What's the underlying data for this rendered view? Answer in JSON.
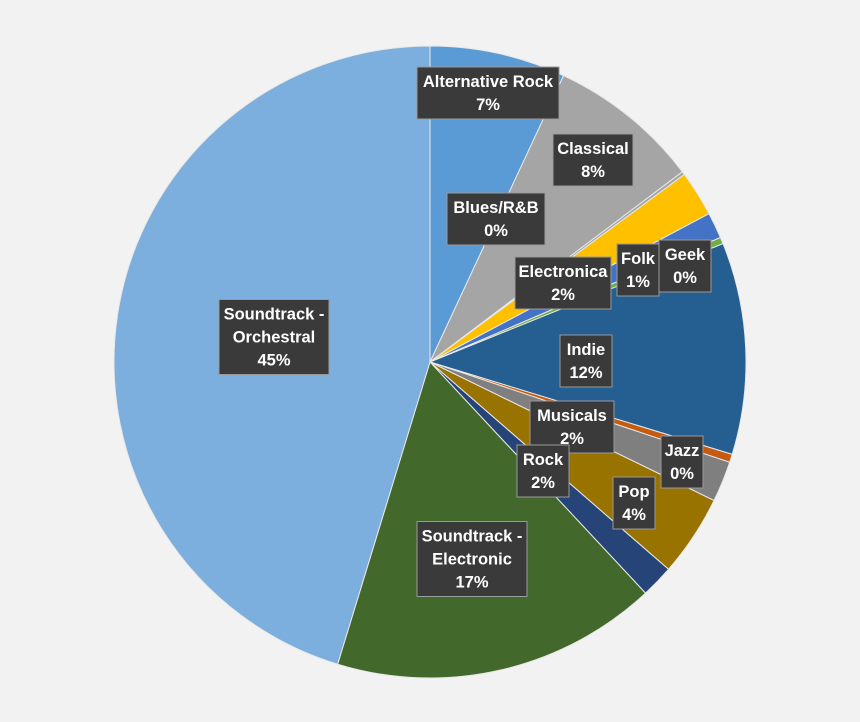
{
  "chart_data": {
    "type": "pie",
    "title": "",
    "start_angle_deg": 0,
    "direction": "clockwise",
    "slices": [
      {
        "label": "Alternative Rock",
        "value": 7,
        "display": "7%",
        "color": "#5b9bd5"
      },
      {
        "label": "Classical",
        "value": 8,
        "display": "8%",
        "color": "#a5a5a5"
      },
      {
        "label": "Blues/R&B",
        "value": 0,
        "display": "0%",
        "color": "#a5a5a5"
      },
      {
        "label": "Electronica",
        "value": 2,
        "display": "2%",
        "color": "#ffc000"
      },
      {
        "label": "Folk",
        "value": 1,
        "display": "1%",
        "color": "#4472c4"
      },
      {
        "label": "Geek",
        "value": 0,
        "display": "0%",
        "color": "#70ad47"
      },
      {
        "label": "Indie",
        "value": 12,
        "display": "12%",
        "color": "#255e91"
      },
      {
        "label": "Jazz",
        "value": 0,
        "display": "0%",
        "color": "#c55a11"
      },
      {
        "label": "Musicals",
        "value": 2,
        "display": "2%",
        "color": "#7f7f7f"
      },
      {
        "label": "Pop",
        "value": 4,
        "display": "4%",
        "color": "#997300"
      },
      {
        "label": "Rock",
        "value": 2,
        "display": "2%",
        "color": "#264478"
      },
      {
        "label": "Soundtrack - Electronic",
        "value": 17,
        "display": "17%",
        "color": "#43682b"
      },
      {
        "label": "Soundtrack - Orchestral",
        "value": 45,
        "display": "45%",
        "color": "#7cafdd"
      }
    ]
  }
}
